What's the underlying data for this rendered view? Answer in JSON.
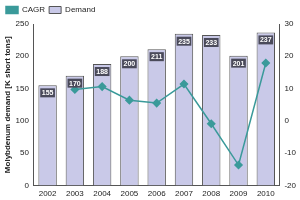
{
  "chart_data": {
    "type": "bar",
    "y_label": "Molybdenum demand [K short tons]",
    "categories": [
      "2002",
      "2003",
      "2004",
      "2005",
      "2006",
      "2007",
      "2008",
      "2009",
      "2010"
    ],
    "series": [
      {
        "name": "Demand",
        "type": "bar",
        "color": "#c9c9e8",
        "data_labels": true,
        "values": [
          155,
          170,
          188,
          200,
          211,
          235,
          233,
          201,
          237
        ]
      },
      {
        "name": "CAGR",
        "type": "line",
        "axis": "y2",
        "color": "#3a9a9a",
        "marker": "diamond",
        "line_style": "solid",
        "values": [
          null,
          9.7,
          10.6,
          6.4,
          5.5,
          11.4,
          -0.9,
          -13.7,
          17.9
        ]
      }
    ],
    "ylim": [
      0,
      250
    ],
    "yticks": [
      0,
      50,
      100,
      150,
      200,
      250
    ],
    "y2lim": [
      -20,
      30
    ],
    "y2ticks": [
      -20,
      -10,
      0,
      10,
      20,
      30
    ],
    "grid": false,
    "legend": "top-left"
  }
}
